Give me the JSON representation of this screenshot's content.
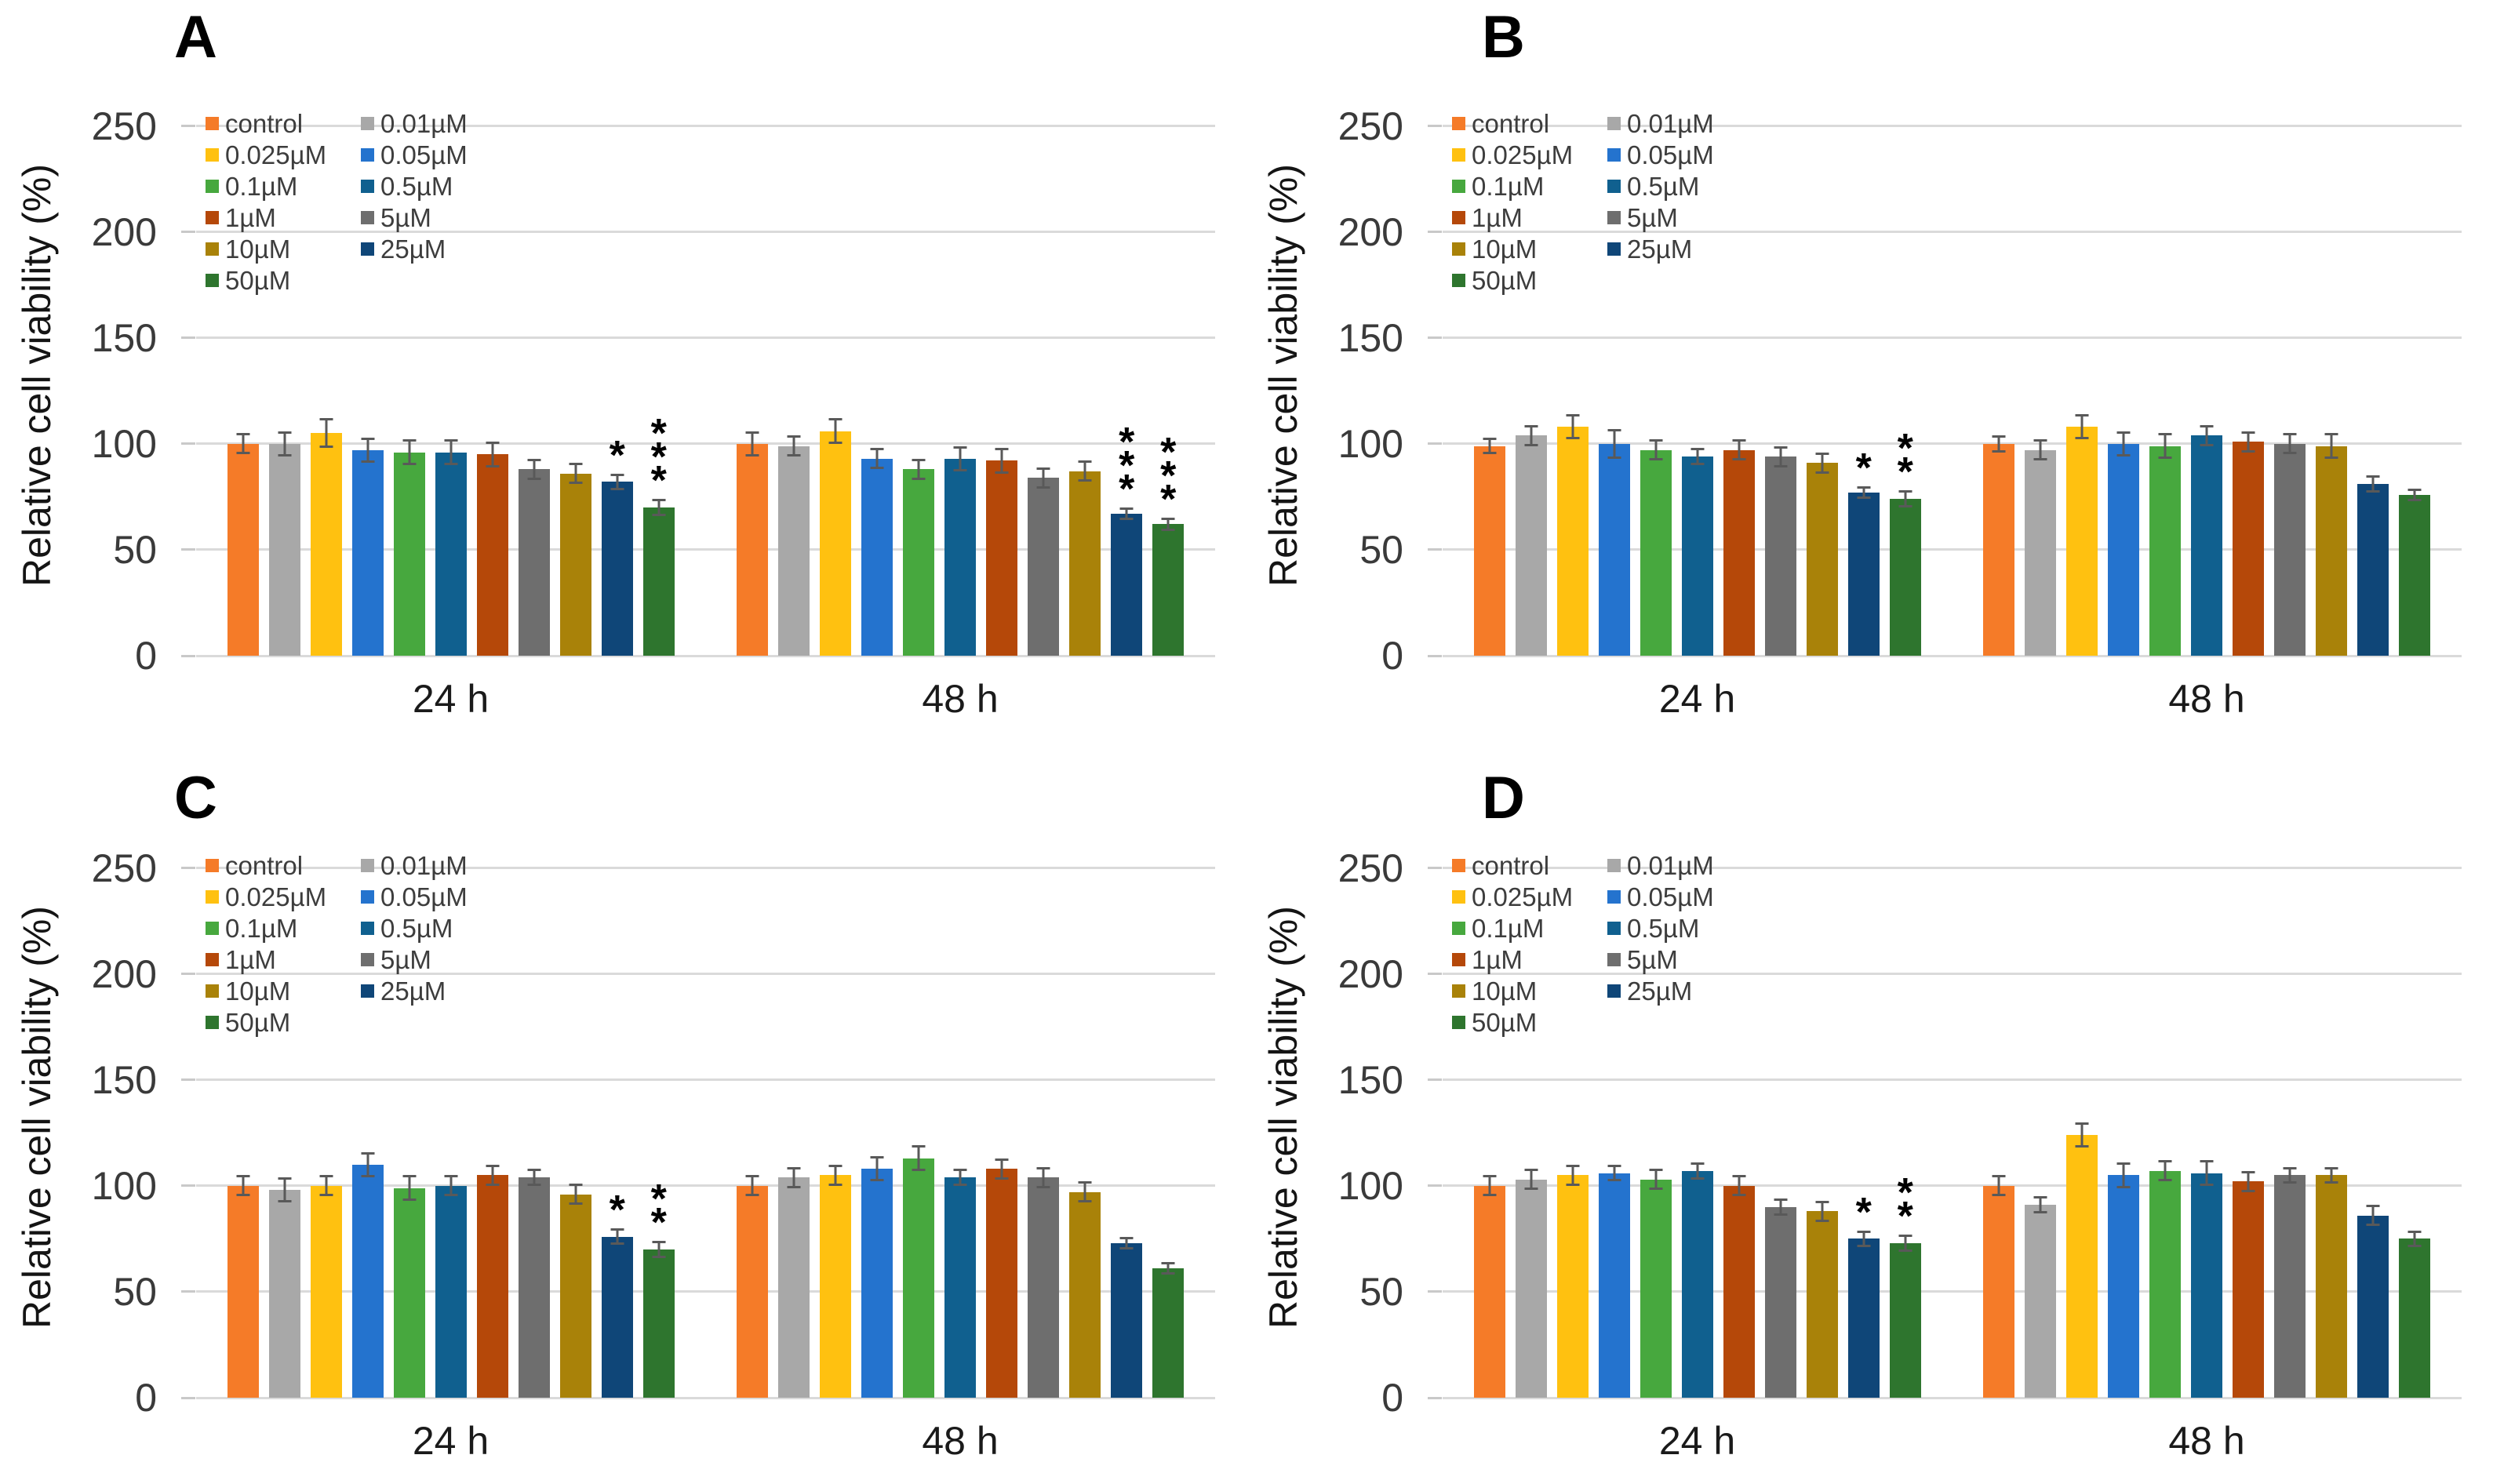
{
  "figure": {
    "background_color": "#ffffff",
    "gridline_color": "#dadada",
    "error_bar_color": "#595959",
    "tick_text_color": "#3a3a3a",
    "legend_text_color": "#3d3d3d"
  },
  "chart_data": [
    {
      "panel": "A",
      "type": "bar",
      "ylabel": "Relative cell viability (%)",
      "yticks": [
        0,
        50,
        100,
        150,
        200,
        250
      ],
      "ylim": [
        0,
        265
      ],
      "grid": true,
      "legend_position": "top-left-inside-two-columns",
      "categories": [
        "24 h",
        "48 h"
      ],
      "series": [
        {
          "name": "control",
          "color": "#F57B28",
          "values": [
            100,
            100
          ],
          "err": [
            5,
            6
          ],
          "sig": [
            "",
            ""
          ]
        },
        {
          "name": "0.01µM",
          "color": "#A8A8A8",
          "values": [
            100,
            99
          ],
          "err": [
            6,
            5
          ],
          "sig": [
            "",
            ""
          ]
        },
        {
          "name": "0.025µM",
          "color": "#FFC110",
          "values": [
            105,
            106
          ],
          "err": [
            7,
            6
          ],
          "sig": [
            "",
            ""
          ]
        },
        {
          "name": "0.05µM",
          "color": "#2473CE",
          "values": [
            97,
            93
          ],
          "err": [
            6,
            5
          ],
          "sig": [
            "",
            ""
          ]
        },
        {
          "name": "0.1µM",
          "color": "#47A83E",
          "values": [
            96,
            88
          ],
          "err": [
            6,
            5
          ],
          "sig": [
            "",
            ""
          ]
        },
        {
          "name": "0.5µM",
          "color": "#10608F",
          "values": [
            96,
            93
          ],
          "err": [
            6,
            6
          ],
          "sig": [
            "",
            ""
          ]
        },
        {
          "name": "1µM",
          "color": "#B54809",
          "values": [
            95,
            92
          ],
          "err": [
            6,
            6
          ],
          "sig": [
            "",
            ""
          ]
        },
        {
          "name": "5µM",
          "color": "#6E6E6E",
          "values": [
            88,
            84
          ],
          "err": [
            5,
            5
          ],
          "sig": [
            "",
            ""
          ]
        },
        {
          "name": "10µM",
          "color": "#A98209",
          "values": [
            86,
            87
          ],
          "err": [
            5,
            5
          ],
          "sig": [
            "",
            ""
          ]
        },
        {
          "name": "25µM",
          "color": "#0F4678",
          "values": [
            82,
            67
          ],
          "err": [
            4,
            3
          ],
          "sig": [
            "*",
            "***"
          ]
        },
        {
          "name": "50µM",
          "color": "#2E752E",
          "values": [
            70,
            62
          ],
          "err": [
            4,
            3
          ],
          "sig": [
            "***",
            "***"
          ]
        }
      ]
    },
    {
      "panel": "B",
      "type": "bar",
      "ylabel": "Relative cell viability (%)",
      "yticks": [
        0,
        50,
        100,
        150,
        200,
        250
      ],
      "ylim": [
        0,
        265
      ],
      "grid": true,
      "legend_position": "top-left-inside-two-columns",
      "categories": [
        "24 h",
        "48 h"
      ],
      "series": [
        {
          "name": "control",
          "color": "#F57B28",
          "values": [
            99,
            100
          ],
          "err": [
            4,
            4
          ],
          "sig": [
            "",
            ""
          ]
        },
        {
          "name": "0.01µM",
          "color": "#A8A8A8",
          "values": [
            104,
            97
          ],
          "err": [
            5,
            5
          ],
          "sig": [
            "",
            ""
          ]
        },
        {
          "name": "0.025µM",
          "color": "#FFC110",
          "values": [
            108,
            108
          ],
          "err": [
            6,
            6
          ],
          "sig": [
            "",
            ""
          ]
        },
        {
          "name": "0.05µM",
          "color": "#2473CE",
          "values": [
            100,
            100
          ],
          "err": [
            7,
            6
          ],
          "sig": [
            "",
            ""
          ]
        },
        {
          "name": "0.1µM",
          "color": "#47A83E",
          "values": [
            97,
            99
          ],
          "err": [
            5,
            6
          ],
          "sig": [
            "",
            ""
          ]
        },
        {
          "name": "0.5µM",
          "color": "#10608F",
          "values": [
            94,
            104
          ],
          "err": [
            4,
            5
          ],
          "sig": [
            "",
            ""
          ]
        },
        {
          "name": "1µM",
          "color": "#B54809",
          "values": [
            97,
            101
          ],
          "err": [
            5,
            5
          ],
          "sig": [
            "",
            ""
          ]
        },
        {
          "name": "5µM",
          "color": "#6E6E6E",
          "values": [
            94,
            100
          ],
          "err": [
            5,
            5
          ],
          "sig": [
            "",
            ""
          ]
        },
        {
          "name": "10µM",
          "color": "#A98209",
          "values": [
            91,
            99
          ],
          "err": [
            5,
            6
          ],
          "sig": [
            "",
            ""
          ]
        },
        {
          "name": "25µM",
          "color": "#0F4678",
          "values": [
            77,
            81
          ],
          "err": [
            3,
            4
          ],
          "sig": [
            "*",
            ""
          ]
        },
        {
          "name": "50µM",
          "color": "#2E752E",
          "values": [
            74,
            76
          ],
          "err": [
            4,
            3
          ],
          "sig": [
            "**",
            ""
          ]
        }
      ]
    },
    {
      "panel": "C",
      "type": "bar",
      "ylabel": "Relative cell viability (%)",
      "yticks": [
        0,
        50,
        100,
        150,
        200,
        250
      ],
      "ylim": [
        0,
        265
      ],
      "grid": true,
      "legend_position": "top-left-inside-two-columns",
      "categories": [
        "24 h",
        "48 h"
      ],
      "series": [
        {
          "name": "control",
          "color": "#F57B28",
          "values": [
            100,
            100
          ],
          "err": [
            5,
            5
          ],
          "sig": [
            "",
            ""
          ]
        },
        {
          "name": "0.01µM",
          "color": "#A8A8A8",
          "values": [
            98,
            104
          ],
          "err": [
            6,
            5
          ],
          "sig": [
            "",
            ""
          ]
        },
        {
          "name": "0.025µM",
          "color": "#FFC110",
          "values": [
            100,
            105
          ],
          "err": [
            5,
            5
          ],
          "sig": [
            "",
            ""
          ]
        },
        {
          "name": "0.05µM",
          "color": "#2473CE",
          "values": [
            110,
            108
          ],
          "err": [
            6,
            6
          ],
          "sig": [
            "",
            ""
          ]
        },
        {
          "name": "0.1µM",
          "color": "#47A83E",
          "values": [
            99,
            113
          ],
          "err": [
            6,
            6
          ],
          "sig": [
            "",
            ""
          ]
        },
        {
          "name": "0.5µM",
          "color": "#10608F",
          "values": [
            100,
            104
          ],
          "err": [
            5,
            4
          ],
          "sig": [
            "",
            ""
          ]
        },
        {
          "name": "1µM",
          "color": "#B54809",
          "values": [
            105,
            108
          ],
          "err": [
            5,
            5
          ],
          "sig": [
            "",
            ""
          ]
        },
        {
          "name": "5µM",
          "color": "#6E6E6E",
          "values": [
            104,
            104
          ],
          "err": [
            4,
            5
          ],
          "sig": [
            "",
            ""
          ]
        },
        {
          "name": "10µM",
          "color": "#A98209",
          "values": [
            96,
            97
          ],
          "err": [
            5,
            5
          ],
          "sig": [
            "",
            ""
          ]
        },
        {
          "name": "25µM",
          "color": "#0F4678",
          "values": [
            76,
            73
          ],
          "err": [
            4,
            3
          ],
          "sig": [
            "*",
            ""
          ]
        },
        {
          "name": "50µM",
          "color": "#2E752E",
          "values": [
            70,
            61
          ],
          "err": [
            4,
            3
          ],
          "sig": [
            "**",
            ""
          ]
        }
      ]
    },
    {
      "panel": "D",
      "type": "bar",
      "ylabel": "Relative cell viability (%)",
      "yticks": [
        0,
        50,
        100,
        150,
        200,
        250
      ],
      "ylim": [
        0,
        265
      ],
      "grid": true,
      "legend_position": "top-left-inside-two-columns",
      "categories": [
        "24 h",
        "48 h"
      ],
      "series": [
        {
          "name": "control",
          "color": "#F57B28",
          "values": [
            100,
            100
          ],
          "err": [
            5,
            5
          ],
          "sig": [
            "",
            ""
          ]
        },
        {
          "name": "0.01µM",
          "color": "#A8A8A8",
          "values": [
            103,
            91
          ],
          "err": [
            5,
            4
          ],
          "sig": [
            "",
            ""
          ]
        },
        {
          "name": "0.025µM",
          "color": "#FFC110",
          "values": [
            105,
            124
          ],
          "err": [
            5,
            6
          ],
          "sig": [
            "",
            ""
          ]
        },
        {
          "name": "0.05µM",
          "color": "#2473CE",
          "values": [
            106,
            105
          ],
          "err": [
            4,
            6
          ],
          "sig": [
            "",
            ""
          ]
        },
        {
          "name": "0.1µM",
          "color": "#47A83E",
          "values": [
            103,
            107
          ],
          "err": [
            5,
            5
          ],
          "sig": [
            "",
            ""
          ]
        },
        {
          "name": "0.5µM",
          "color": "#10608F",
          "values": [
            107,
            106
          ],
          "err": [
            4,
            6
          ],
          "sig": [
            "",
            ""
          ]
        },
        {
          "name": "1µM",
          "color": "#B54809",
          "values": [
            100,
            102
          ],
          "err": [
            5,
            5
          ],
          "sig": [
            "",
            ""
          ]
        },
        {
          "name": "5µM",
          "color": "#6E6E6E",
          "values": [
            90,
            105
          ],
          "err": [
            4,
            4
          ],
          "sig": [
            "",
            ""
          ]
        },
        {
          "name": "10µM",
          "color": "#A98209",
          "values": [
            88,
            105
          ],
          "err": [
            5,
            4
          ],
          "sig": [
            "",
            ""
          ]
        },
        {
          "name": "25µM",
          "color": "#0F4678",
          "values": [
            75,
            86
          ],
          "err": [
            4,
            5
          ],
          "sig": [
            "*",
            ""
          ]
        },
        {
          "name": "50µM",
          "color": "#2E752E",
          "values": [
            73,
            75
          ],
          "err": [
            4,
            4
          ],
          "sig": [
            "**",
            ""
          ]
        }
      ]
    }
  ]
}
